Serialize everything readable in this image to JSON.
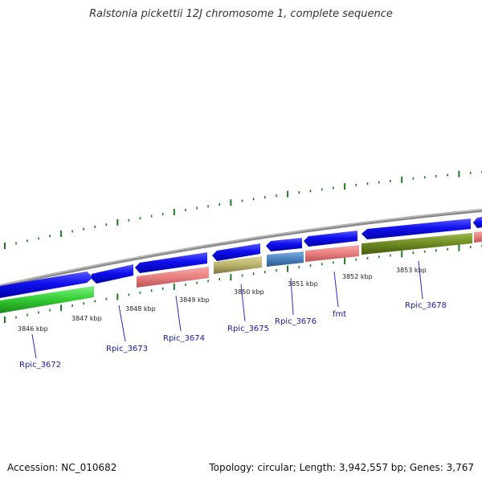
{
  "header": {
    "title": "Ralstonia pickettii 12J chromosome 1, complete sequence"
  },
  "footer": {
    "accession": "Accession: NC_010682",
    "stats": "Topology: circular; Length: 3,942,557 bp; Genes: 3,767"
  },
  "colors": {
    "forward_cds": "#1010e8",
    "reverse_cds": "#1010e8",
    "rrna_like": "#e88080",
    "pseudo": "#b8b070",
    "trna": "#4a82c0",
    "olive": "#6e8a22",
    "green": "#33cc33",
    "backbone": "#8a8a8a",
    "ticks": "#1e7a1e",
    "label": "#1a1aa6"
  },
  "scale": {
    "ticks": [
      {
        "label": "3846 kbp"
      },
      {
        "label": "3847 kbp"
      },
      {
        "label": "3848 kbp"
      },
      {
        "label": "3849 kbp"
      },
      {
        "label": "3850 kbp"
      },
      {
        "label": "3851 kbp"
      },
      {
        "label": "3852 kbp"
      },
      {
        "label": "3853 kbp"
      }
    ]
  },
  "genes": [
    {
      "label": "Rpic_3672"
    },
    {
      "label": "Rpic_3673"
    },
    {
      "label": "Rpic_3674"
    },
    {
      "label": "Rpic_3675"
    },
    {
      "label": "Rpic_3676"
    },
    {
      "label": "fmt"
    },
    {
      "label": "Rpic_3678"
    }
  ]
}
